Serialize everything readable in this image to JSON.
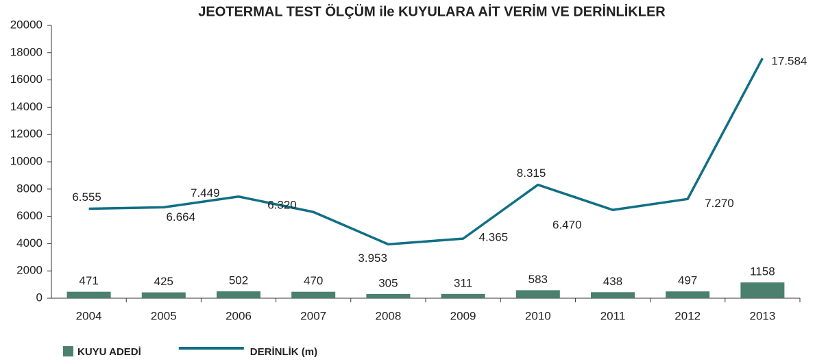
{
  "chart_data": {
    "type": "combo",
    "title": "JEOTERMAL TEST ÖLÇÜM ile KUYULARA AİT VERİM VE DERİNLİKLER",
    "categories": [
      "2004",
      "2005",
      "2006",
      "2007",
      "2008",
      "2009",
      "2010",
      "2011",
      "2012",
      "2013"
    ],
    "series": [
      {
        "name": "KUYU ADEDİ",
        "type": "bar",
        "color": "#4b7f6e",
        "values": [
          471,
          425,
          502,
          470,
          305,
          311,
          583,
          438,
          497,
          1158
        ]
      },
      {
        "name": "DERİNLİK (m)",
        "type": "line",
        "color": "#106f85",
        "values": [
          6555,
          6664,
          7449,
          6320,
          3953,
          4365,
          8315,
          6470,
          7270,
          17584
        ],
        "value_labels": [
          "6.555",
          "6.664",
          "7.449",
          "6.320",
          "3.953",
          "4.365",
          "8.315",
          "6.470",
          "7.270",
          "17.584"
        ]
      }
    ],
    "ylim": [
      0,
      20000
    ],
    "yticks": [
      0,
      2000,
      4000,
      6000,
      8000,
      10000,
      12000,
      14000,
      16000,
      18000,
      20000
    ],
    "grid": false,
    "legend": "bottom"
  }
}
